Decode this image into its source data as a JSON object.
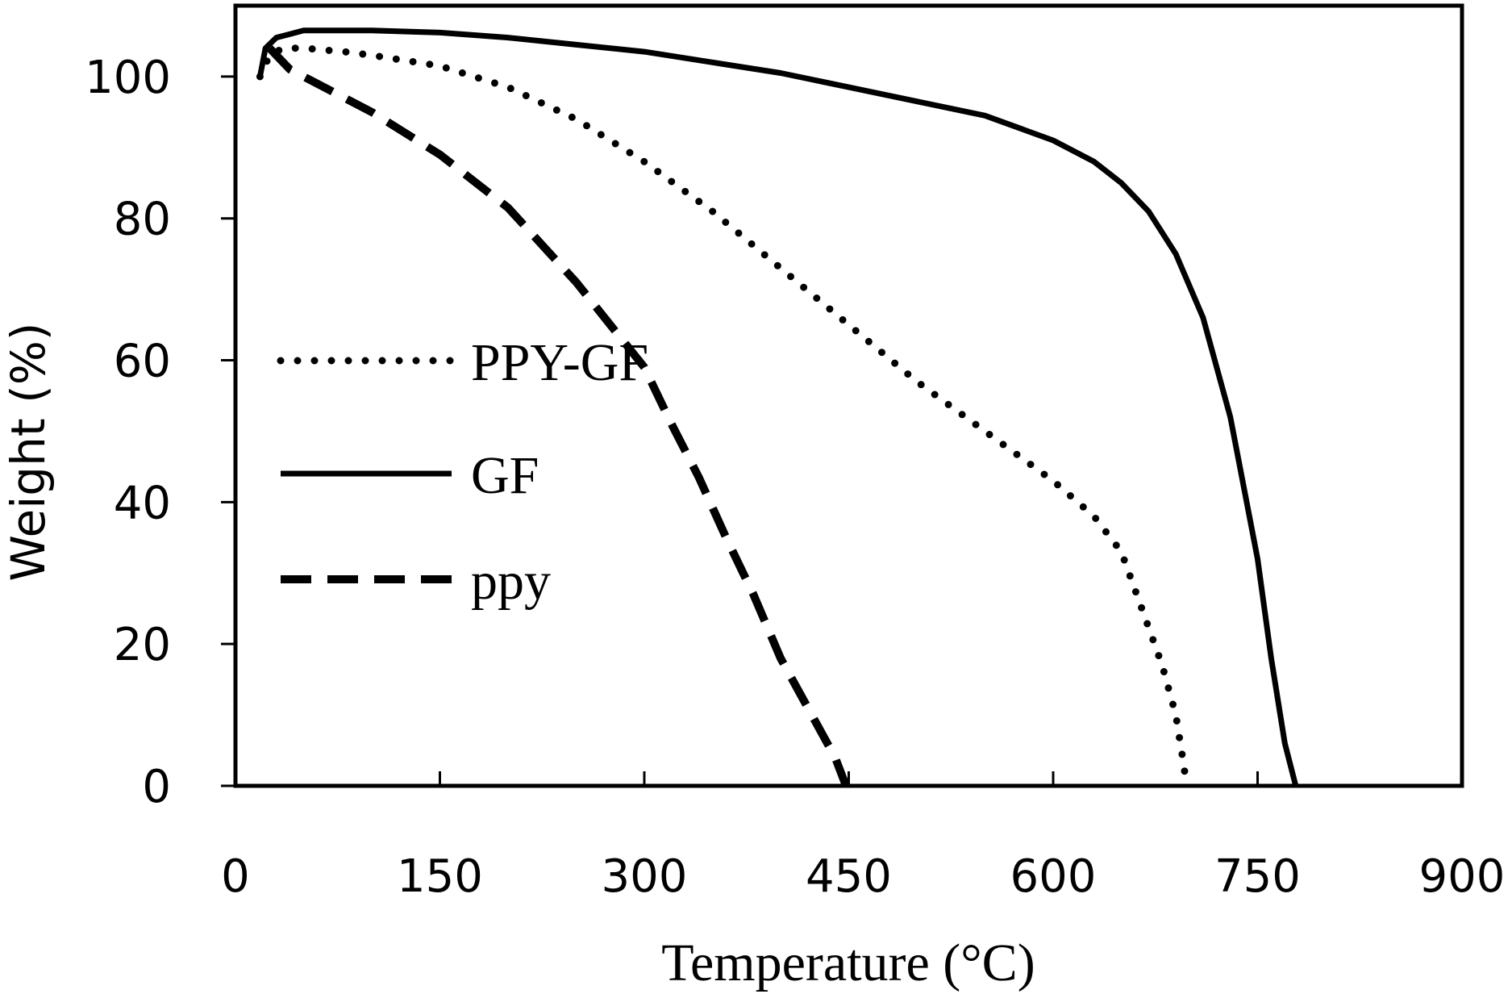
{
  "chart_data": {
    "type": "line",
    "title": "",
    "xlabel": "Temperature (°C)",
    "ylabel": "Weight (%)",
    "xlim": [
      0,
      900
    ],
    "ylim": [
      0,
      110
    ],
    "xticks": [
      0,
      150,
      300,
      450,
      600,
      750,
      900
    ],
    "yticks": [
      0,
      20,
      40,
      60,
      80,
      100
    ],
    "xtick_labels": [
      "0",
      "150",
      "300",
      "450",
      "600",
      "750",
      "900"
    ],
    "ytick_labels": [
      "0",
      "20",
      "40",
      "60",
      "80",
      "100"
    ],
    "grid": false,
    "legend_position": "left",
    "series": [
      {
        "name": "PPY-GF",
        "style": "dotted",
        "color": "#000000",
        "x": [
          18,
          25,
          35,
          50,
          80,
          100,
          150,
          200,
          250,
          300,
          350,
          400,
          450,
          500,
          550,
          600,
          630,
          650,
          665,
          680,
          690,
          695,
          698
        ],
        "y": [
          100,
          103,
          104,
          104,
          103.5,
          103,
          101.5,
          98.5,
          94,
          88,
          81,
          73,
          65,
          57,
          50,
          43,
          38,
          33,
          25,
          17,
          10,
          4,
          0
        ]
      },
      {
        "name": "GF",
        "style": "solid",
        "color": "#000000",
        "x": [
          18,
          22,
          30,
          40,
          50,
          100,
          150,
          200,
          250,
          300,
          350,
          400,
          450,
          500,
          550,
          600,
          630,
          650,
          670,
          690,
          710,
          730,
          750,
          760,
          770,
          778
        ],
        "y": [
          100,
          104,
          105.5,
          106,
          106.5,
          106.5,
          106.2,
          105.5,
          104.5,
          103.5,
          102,
          100.5,
          98.5,
          96.5,
          94.5,
          91,
          88,
          85,
          81,
          75,
          66,
          52,
          32,
          18,
          6,
          0
        ]
      },
      {
        "name": "ppy",
        "style": "dashed",
        "color": "#000000",
        "x": [
          25,
          30,
          40,
          60,
          100,
          150,
          200,
          250,
          300,
          320,
          340,
          360,
          380,
          400,
          420,
          440,
          448
        ],
        "y": [
          104,
          103,
          101,
          99,
          95,
          89,
          81.5,
          71,
          59,
          51,
          43.5,
          35,
          27,
          18,
          11,
          4,
          0
        ]
      }
    ]
  }
}
